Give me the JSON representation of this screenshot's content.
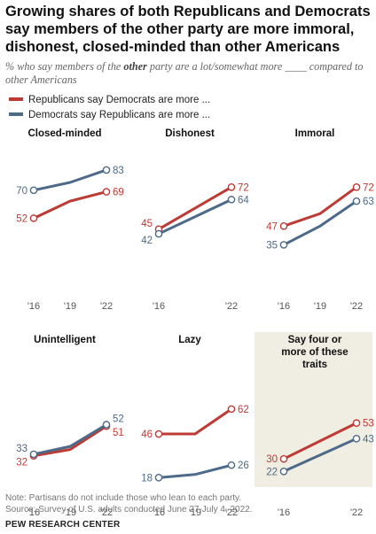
{
  "title": "Growing shares of both Republicans and Democrats say members of the other party are more immoral, dishonest, closed-minded than other Americans",
  "subtitle_pre": "% who say members of the ",
  "subtitle_em": "other",
  "subtitle_post": " party are a lot/somewhat more ____ compared to other Americans",
  "legend": {
    "republicans": "Republicans say Democrats are more ...",
    "democrats": "Democrats say Republicans are more ..."
  },
  "colors": {
    "republicans": "#be3a34",
    "democrats": "#4d6a89",
    "highlight_bg": "#f0ede2"
  },
  "chart_data": [
    {
      "type": "line",
      "title": "Closed-minded",
      "x": [
        "'16",
        "'19",
        "'22"
      ],
      "ylim": [
        0,
        100
      ],
      "series": [
        {
          "name": "Republicans say Democrats are more ...",
          "values": [
            52,
            63,
            69
          ],
          "labels": [
            "52",
            "",
            "69"
          ]
        },
        {
          "name": "Democrats say Republicans are more ...",
          "values": [
            70,
            75,
            83
          ],
          "labels": [
            "70",
            "",
            "83"
          ]
        }
      ]
    },
    {
      "type": "line",
      "title": "Dishonest",
      "x": [
        "'16",
        "'22"
      ],
      "ylim": [
        0,
        100
      ],
      "series": [
        {
          "name": "Republicans say Democrats are more ...",
          "values": [
            45,
            72
          ],
          "labels": [
            "45",
            "72"
          ]
        },
        {
          "name": "Democrats say Republicans are more ...",
          "values": [
            42,
            64
          ],
          "labels": [
            "42",
            "64"
          ]
        }
      ]
    },
    {
      "type": "line",
      "title": "Immoral",
      "x": [
        "'16",
        "'19",
        "'22"
      ],
      "ylim": [
        0,
        100
      ],
      "series": [
        {
          "name": "Republicans say Democrats are more ...",
          "values": [
            47,
            55,
            72
          ],
          "labels": [
            "47",
            "",
            "72"
          ]
        },
        {
          "name": "Democrats say Republicans are more ...",
          "values": [
            35,
            47,
            63
          ],
          "labels": [
            "35",
            "",
            "63"
          ]
        }
      ]
    },
    {
      "type": "line",
      "title": "Unintelligent",
      "x": [
        "'16",
        "'19",
        "'22"
      ],
      "ylim": [
        0,
        100
      ],
      "series": [
        {
          "name": "Republicans say Democrats are more ...",
          "values": [
            32,
            36,
            51
          ],
          "labels": [
            "32",
            "",
            "51"
          ]
        },
        {
          "name": "Democrats say Republicans are more ...",
          "values": [
            33,
            38,
            52
          ],
          "labels": [
            "33",
            "",
            "52"
          ]
        }
      ]
    },
    {
      "type": "line",
      "title": "Lazy",
      "x": [
        "'16",
        "'19",
        "'22"
      ],
      "ylim": [
        0,
        100
      ],
      "series": [
        {
          "name": "Republicans say Democrats are more ...",
          "values": [
            46,
            46,
            62
          ],
          "labels": [
            "46",
            "",
            "62"
          ]
        },
        {
          "name": "Democrats say Republicans are more ...",
          "values": [
            18,
            20,
            26
          ],
          "labels": [
            "18",
            "",
            "26"
          ]
        }
      ]
    },
    {
      "type": "line",
      "title": "Say four or more of these traits",
      "x": [
        "'16",
        "'22"
      ],
      "ylim": [
        0,
        100
      ],
      "series": [
        {
          "name": "Republicans say Democrats are more ...",
          "values": [
            30,
            53
          ],
          "labels": [
            "30",
            "53"
          ]
        },
        {
          "name": "Democrats say Republicans are more ...",
          "values": [
            22,
            43
          ],
          "labels": [
            "22",
            "43"
          ]
        }
      ]
    }
  ],
  "note": "Note: Partisans do not include those who lean to each party.",
  "source": "Source: Survey of U.S. adults conducted June 27-July 4, 2022.",
  "brand": "PEW RESEARCH CENTER"
}
